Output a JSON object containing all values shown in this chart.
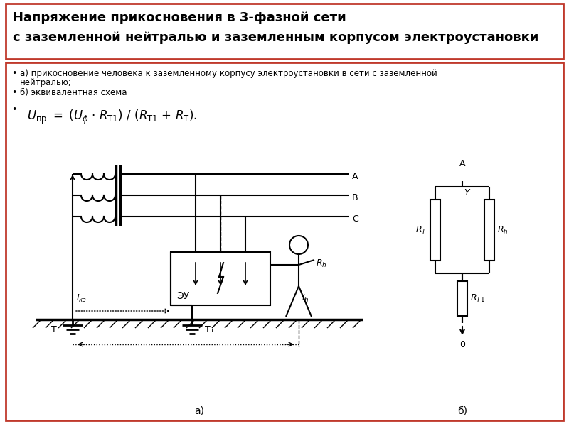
{
  "title_line1": "Напряжение прикосновения в 3-фазной сети",
  "title_line2": "с заземленной нейтралью и заземленным корпусом электроустановки",
  "bullet1a": "а) прикосновение человека к заземленному корпусу электроустановки в сети с заземленной",
  "bullet1b": "нейтралью;",
  "bullet2": "б) эквивалентная схема",
  "label_a": "а)",
  "label_b": "б)",
  "phases": [
    "А",
    "В",
    "С"
  ],
  "bg_color": "#ffffff",
  "border_color": "#c0392b",
  "line_color": "#000000",
  "text_color": "#000000",
  "title_fontsize": 13,
  "body_fontsize": 8.5,
  "formula_fontsize": 12
}
